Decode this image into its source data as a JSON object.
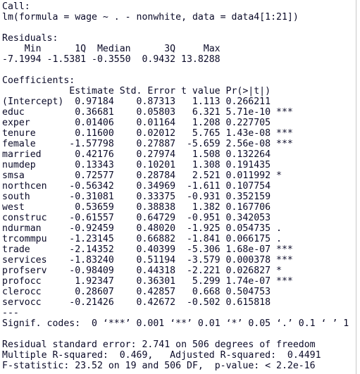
{
  "call": {
    "label": "Call:",
    "formula": "lm(formula = wage ~ . - nonwhite, data = data4[1:21])"
  },
  "residuals": {
    "label": "Residuals:",
    "names": [
      "Min",
      "1Q",
      "Median",
      "3Q",
      "Max"
    ],
    "values": [
      "-7.1994",
      "-1.5381",
      "-0.3550",
      "0.9432",
      "13.8288"
    ]
  },
  "coefficients": {
    "label": "Coefficients:",
    "headers": [
      "Estimate",
      "Std. Error",
      "t value",
      "Pr(>|t|)"
    ],
    "rows": [
      {
        "term": "(Intercept)",
        "estimate": "0.97184",
        "std_error": "0.87313",
        "t_value": "1.113",
        "p_value": "0.266211"
      },
      {
        "term": "educ",
        "estimate": "0.36681",
        "std_error": "0.05803",
        "t_value": "6.321",
        "p_value": "5.71e-10",
        "signif": "***"
      },
      {
        "term": "exper",
        "estimate": "0.01406",
        "std_error": "0.01164",
        "t_value": "1.208",
        "p_value": "0.227705"
      },
      {
        "term": "tenure",
        "estimate": "0.11600",
        "std_error": "0.02012",
        "t_value": "5.765",
        "p_value": "1.43e-08",
        "signif": "***"
      },
      {
        "term": "female",
        "estimate": "-1.57798",
        "std_error": "0.27887",
        "t_value": "-5.659",
        "p_value": "2.56e-08",
        "signif": "***"
      },
      {
        "term": "married",
        "estimate": "0.42176",
        "std_error": "0.27974",
        "t_value": "1.508",
        "p_value": "0.132264"
      },
      {
        "term": "numdep",
        "estimate": "0.13343",
        "std_error": "0.10201",
        "t_value": "1.308",
        "p_value": "0.191435"
      },
      {
        "term": "smsa",
        "estimate": "0.72577",
        "std_error": "0.28784",
        "t_value": "2.521",
        "p_value": "0.011992",
        "signif": "*"
      },
      {
        "term": "northcen",
        "estimate": "-0.56342",
        "std_error": "0.34969",
        "t_value": "-1.611",
        "p_value": "0.107754"
      },
      {
        "term": "south",
        "estimate": "-0.31081",
        "std_error": "0.33375",
        "t_value": "-0.931",
        "p_value": "0.352159"
      },
      {
        "term": "west",
        "estimate": "0.53659",
        "std_error": "0.38838",
        "t_value": "1.382",
        "p_value": "0.167706"
      },
      {
        "term": "construc",
        "estimate": "-0.61557",
        "std_error": "0.64729",
        "t_value": "-0.951",
        "p_value": "0.342053"
      },
      {
        "term": "ndurman",
        "estimate": "-0.92459",
        "std_error": "0.48020",
        "t_value": "-1.925",
        "p_value": "0.054735",
        "signif": "."
      },
      {
        "term": "trcommpu",
        "estimate": "-1.23145",
        "std_error": "0.66882",
        "t_value": "-1.841",
        "p_value": "0.066175",
        "signif": "."
      },
      {
        "term": "trade",
        "estimate": "-2.14352",
        "std_error": "0.40399",
        "t_value": "-5.306",
        "p_value": "1.68e-07",
        "signif": "***"
      },
      {
        "term": "services",
        "estimate": "-1.83240",
        "std_error": "0.51194",
        "t_value": "-3.579",
        "p_value": "0.000378",
        "signif": "***"
      },
      {
        "term": "profserv",
        "estimate": "-0.98409",
        "std_error": "0.44318",
        "t_value": "-2.221",
        "p_value": "0.026827",
        "signif": "*"
      },
      {
        "term": "profocc",
        "estimate": "1.92347",
        "std_error": "0.36301",
        "t_value": "5.299",
        "p_value": "1.74e-07",
        "signif": "***"
      },
      {
        "term": "clerocc",
        "estimate": "0.28607",
        "std_error": "0.42857",
        "t_value": "0.668",
        "p_value": "0.504753"
      },
      {
        "term": "servocc",
        "estimate": "-0.21426",
        "std_error": "0.42672",
        "t_value": "-0.502",
        "p_value": "0.615818"
      }
    ]
  },
  "separator": "---",
  "signif_codes": "Signif. codes:  0 ‘***’ 0.001 ‘**’ 0.01 ‘*’ 0.05 ‘.’ 0.1 ‘ ’ 1",
  "summary": [
    "Residual standard error: 2.741 on 506 degrees of freedom",
    "Multiple R-squared:  0.469,   Adjusted R-squared:  0.4491",
    "F-statistic: 23.52 on 19 and 506 DF,  p-value: < 2.2e-16"
  ]
}
